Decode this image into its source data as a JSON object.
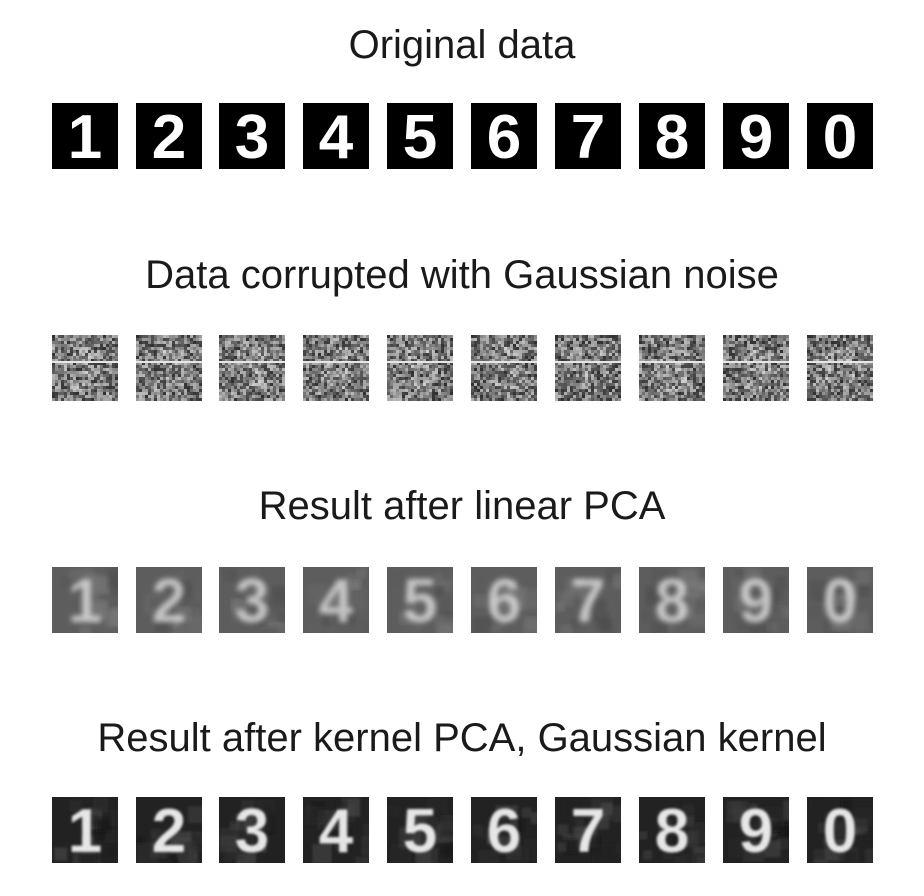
{
  "titles": {
    "original": "Original data",
    "noisy": "Data corrupted with Gaussian noise",
    "linear": "Result after linear PCA",
    "kernel": "Result after kernel PCA, Gaussian kernel"
  },
  "digits": [
    "1",
    "2",
    "3",
    "4",
    "5",
    "6",
    "7",
    "8",
    "9",
    "0"
  ]
}
